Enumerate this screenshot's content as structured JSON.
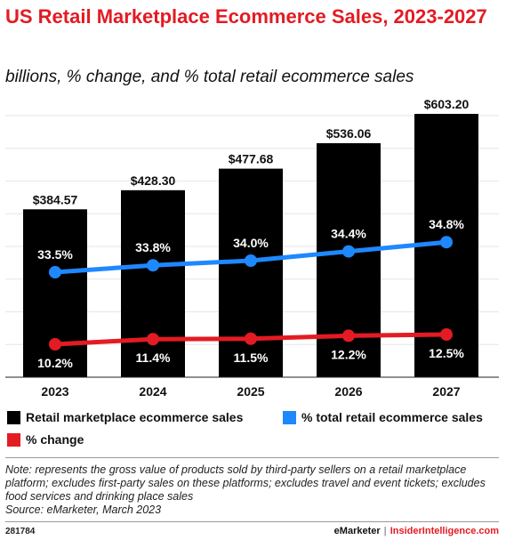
{
  "title": "US Retail Marketplace Ecommerce Sales, 2023-2027",
  "subtitle": "billions, % change, and % total retail ecommerce sales",
  "chart_data": {
    "type": "bar",
    "categories": [
      "2023",
      "2024",
      "2025",
      "2026",
      "2027"
    ],
    "series": [
      {
        "name": "Retail marketplace ecommerce sales",
        "type": "bar",
        "color": "#000000",
        "values": [
          384.57,
          428.3,
          477.68,
          536.06,
          603.2
        ],
        "labels": [
          "$384.57",
          "$428.30",
          "$477.68",
          "$536.06",
          "$603.20"
        ]
      },
      {
        "name": "% total retail ecommerce sales",
        "type": "line",
        "color": "#1e88ff",
        "values": [
          33.5,
          33.8,
          34.0,
          34.4,
          34.8
        ],
        "labels": [
          "33.5%",
          "33.8%",
          "34.0%",
          "34.4%",
          "34.8%"
        ]
      },
      {
        "name": "% change",
        "type": "line",
        "color": "#e31b23",
        "values": [
          10.2,
          11.4,
          11.5,
          12.2,
          12.5
        ],
        "labels": [
          "10.2%",
          "11.4%",
          "11.5%",
          "12.2%",
          "12.5%"
        ]
      }
    ]
  },
  "note": "Note: represents the gross value of products sold by third-party sellers on a retail marketplace platform; excludes first-party sales on these platforms; excludes travel and event tickets; excludes food services and drinking place sales",
  "source": "Source: eMarketer, March 2023",
  "footer": {
    "id": "281784",
    "brand_left": "eMarketer",
    "separator": "|",
    "brand_right": "InsiderIntelligence.com"
  }
}
